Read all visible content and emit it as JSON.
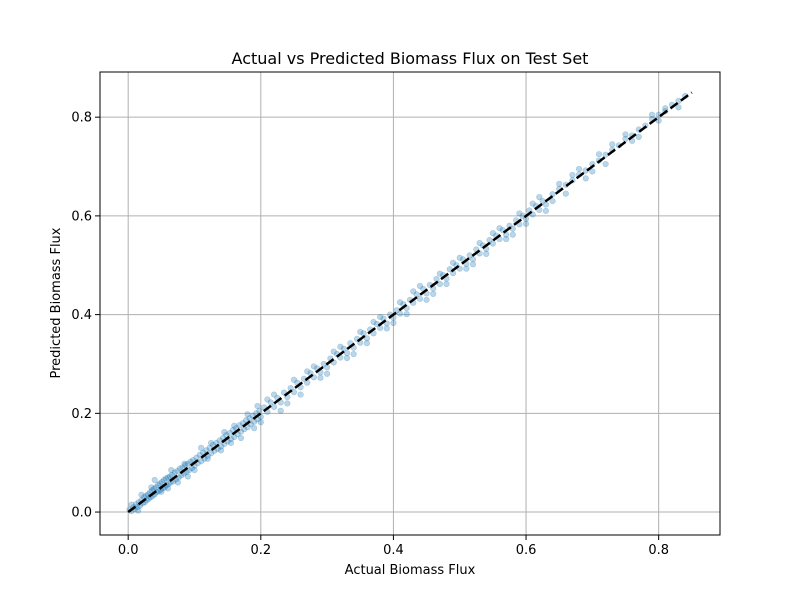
{
  "chart_data": {
    "type": "scatter",
    "title": "Actual vs Predicted Biomass Flux on Test Set",
    "xlabel": "Actual Biomass Flux",
    "ylabel": "Predicted Biomass Flux",
    "xlim": [
      -0.0425,
      0.8925
    ],
    "ylim": [
      -0.0465,
      0.8915
    ],
    "xticks": [
      0.0,
      0.2,
      0.4,
      0.6,
      0.8
    ],
    "yticks": [
      0.0,
      0.2,
      0.4,
      0.6,
      0.8
    ],
    "xtick_labels": [
      "0.0",
      "0.2",
      "0.4",
      "0.6",
      "0.8"
    ],
    "ytick_labels": [
      "0.0",
      "0.2",
      "0.4",
      "0.6",
      "0.8"
    ],
    "grid": true,
    "reference_line": {
      "style": "dashed",
      "color": "#000000",
      "from": [
        0.0,
        0.0
      ],
      "to": [
        0.85,
        0.85
      ]
    },
    "point_color": "#1f77b4",
    "point_opacity": 0.3,
    "points": [
      [
        0.002,
        0.005
      ],
      [
        0.005,
        0.002
      ],
      [
        0.008,
        0.01
      ],
      [
        0.01,
        0.006
      ],
      [
        0.012,
        0.016
      ],
      [
        0.014,
        0.01
      ],
      [
        0.016,
        0.02
      ],
      [
        0.018,
        0.013
      ],
      [
        0.02,
        0.024
      ],
      [
        0.022,
        0.018
      ],
      [
        0.024,
        0.03
      ],
      [
        0.025,
        0.02
      ],
      [
        0.027,
        0.033
      ],
      [
        0.028,
        0.024
      ],
      [
        0.03,
        0.036
      ],
      [
        0.031,
        0.027
      ],
      [
        0.033,
        0.04
      ],
      [
        0.034,
        0.03
      ],
      [
        0.036,
        0.044
      ],
      [
        0.037,
        0.033
      ],
      [
        0.039,
        0.047
      ],
      [
        0.04,
        0.036
      ],
      [
        0.042,
        0.05
      ],
      [
        0.043,
        0.04
      ],
      [
        0.045,
        0.055
      ],
      [
        0.046,
        0.042
      ],
      [
        0.048,
        0.058
      ],
      [
        0.049,
        0.045
      ],
      [
        0.051,
        0.061
      ],
      [
        0.052,
        0.048
      ],
      [
        0.054,
        0.065
      ],
      [
        0.055,
        0.05
      ],
      [
        0.057,
        0.068
      ],
      [
        0.058,
        0.054
      ],
      [
        0.06,
        0.07
      ],
      [
        0.061,
        0.057
      ],
      [
        0.063,
        0.072
      ],
      [
        0.064,
        0.06
      ],
      [
        0.066,
        0.075
      ],
      [
        0.068,
        0.062
      ],
      [
        0.07,
        0.08
      ],
      [
        0.072,
        0.066
      ],
      [
        0.074,
        0.083
      ],
      [
        0.076,
        0.07
      ],
      [
        0.078,
        0.088
      ],
      [
        0.08,
        0.074
      ],
      [
        0.082,
        0.09
      ],
      [
        0.084,
        0.078
      ],
      [
        0.086,
        0.095
      ],
      [
        0.088,
        0.081
      ],
      [
        0.09,
        0.098
      ],
      [
        0.092,
        0.085
      ],
      [
        0.094,
        0.102
      ],
      [
        0.096,
        0.089
      ],
      [
        0.098,
        0.105
      ],
      [
        0.1,
        0.094
      ],
      [
        0.103,
        0.11
      ],
      [
        0.105,
        0.099
      ],
      [
        0.108,
        0.116
      ],
      [
        0.11,
        0.103
      ],
      [
        0.113,
        0.12
      ],
      [
        0.115,
        0.108
      ],
      [
        0.118,
        0.125
      ],
      [
        0.12,
        0.114
      ],
      [
        0.123,
        0.13
      ],
      [
        0.125,
        0.119
      ],
      [
        0.128,
        0.136
      ],
      [
        0.13,
        0.124
      ],
      [
        0.133,
        0.14
      ],
      [
        0.135,
        0.128
      ],
      [
        0.138,
        0.145
      ],
      [
        0.14,
        0.133
      ],
      [
        0.143,
        0.15
      ],
      [
        0.145,
        0.138
      ],
      [
        0.148,
        0.156
      ],
      [
        0.15,
        0.143
      ],
      [
        0.153,
        0.16
      ],
      [
        0.155,
        0.148
      ],
      [
        0.158,
        0.166
      ],
      [
        0.16,
        0.152
      ],
      [
        0.163,
        0.17
      ],
      [
        0.165,
        0.158
      ],
      [
        0.168,
        0.176
      ],
      [
        0.17,
        0.163
      ],
      [
        0.173,
        0.18
      ],
      [
        0.175,
        0.168
      ],
      [
        0.178,
        0.186
      ],
      [
        0.18,
        0.172
      ],
      [
        0.183,
        0.19
      ],
      [
        0.185,
        0.178
      ],
      [
        0.188,
        0.195
      ],
      [
        0.19,
        0.183
      ],
      [
        0.193,
        0.2
      ],
      [
        0.195,
        0.188
      ],
      [
        0.198,
        0.205
      ],
      [
        0.2,
        0.193
      ],
      [
        0.205,
        0.212
      ],
      [
        0.21,
        0.203
      ],
      [
        0.215,
        0.222
      ],
      [
        0.22,
        0.213
      ],
      [
        0.225,
        0.231
      ],
      [
        0.23,
        0.222
      ],
      [
        0.235,
        0.242
      ],
      [
        0.24,
        0.233
      ],
      [
        0.245,
        0.251
      ],
      [
        0.25,
        0.243
      ],
      [
        0.255,
        0.262
      ],
      [
        0.26,
        0.253
      ],
      [
        0.265,
        0.27
      ],
      [
        0.27,
        0.262
      ],
      [
        0.275,
        0.281
      ],
      [
        0.28,
        0.273
      ],
      [
        0.285,
        0.291
      ],
      [
        0.29,
        0.283
      ],
      [
        0.295,
        0.3
      ],
      [
        0.3,
        0.293
      ],
      [
        0.305,
        0.311
      ],
      [
        0.31,
        0.303
      ],
      [
        0.315,
        0.32
      ],
      [
        0.32,
        0.313
      ],
      [
        0.325,
        0.331
      ],
      [
        0.33,
        0.322
      ],
      [
        0.335,
        0.342
      ],
      [
        0.34,
        0.333
      ],
      [
        0.345,
        0.351
      ],
      [
        0.35,
        0.343
      ],
      [
        0.355,
        0.362
      ],
      [
        0.36,
        0.352
      ],
      [
        0.365,
        0.37
      ],
      [
        0.37,
        0.362
      ],
      [
        0.375,
        0.381
      ],
      [
        0.38,
        0.373
      ],
      [
        0.385,
        0.392
      ],
      [
        0.39,
        0.382
      ],
      [
        0.395,
        0.4
      ],
      [
        0.4,
        0.394
      ],
      [
        0.405,
        0.409
      ],
      [
        0.41,
        0.402
      ],
      [
        0.415,
        0.421
      ],
      [
        0.42,
        0.413
      ],
      [
        0.425,
        0.43
      ],
      [
        0.43,
        0.424
      ],
      [
        0.435,
        0.441
      ],
      [
        0.44,
        0.432
      ],
      [
        0.445,
        0.452
      ],
      [
        0.45,
        0.443
      ],
      [
        0.455,
        0.46
      ],
      [
        0.46,
        0.453
      ],
      [
        0.465,
        0.472
      ],
      [
        0.47,
        0.462
      ],
      [
        0.475,
        0.48
      ],
      [
        0.48,
        0.473
      ],
      [
        0.485,
        0.492
      ],
      [
        0.49,
        0.484
      ],
      [
        0.495,
        0.5
      ],
      [
        0.5,
        0.493
      ],
      [
        0.505,
        0.512
      ],
      [
        0.51,
        0.503
      ],
      [
        0.515,
        0.52
      ],
      [
        0.52,
        0.512
      ],
      [
        0.525,
        0.532
      ],
      [
        0.53,
        0.524
      ],
      [
        0.535,
        0.54
      ],
      [
        0.54,
        0.533
      ],
      [
        0.545,
        0.551
      ],
      [
        0.55,
        0.544
      ],
      [
        0.555,
        0.56
      ],
      [
        0.56,
        0.553
      ],
      [
        0.565,
        0.571
      ],
      [
        0.57,
        0.562
      ],
      [
        0.575,
        0.58
      ],
      [
        0.58,
        0.574
      ],
      [
        0.585,
        0.591
      ],
      [
        0.59,
        0.583
      ],
      [
        0.595,
        0.6
      ],
      [
        0.6,
        0.594
      ],
      [
        0.605,
        0.611
      ],
      [
        0.61,
        0.603
      ],
      [
        0.615,
        0.62
      ],
      [
        0.62,
        0.612
      ],
      [
        0.625,
        0.63
      ],
      [
        0.63,
        0.623
      ],
      [
        0.64,
        0.644
      ],
      [
        0.65,
        0.655
      ],
      [
        0.66,
        0.663
      ],
      [
        0.67,
        0.672
      ],
      [
        0.68,
        0.684
      ],
      [
        0.69,
        0.692
      ],
      [
        0.7,
        0.705
      ],
      [
        0.71,
        0.712
      ],
      [
        0.72,
        0.724
      ],
      [
        0.73,
        0.734
      ],
      [
        0.74,
        0.743
      ],
      [
        0.75,
        0.756
      ],
      [
        0.76,
        0.763
      ],
      [
        0.77,
        0.775
      ],
      [
        0.78,
        0.783
      ],
      [
        0.79,
        0.796
      ],
      [
        0.8,
        0.805
      ],
      [
        0.81,
        0.812
      ],
      [
        0.82,
        0.825
      ],
      [
        0.83,
        0.833
      ],
      [
        0.84,
        0.843
      ],
      [
        0.04,
        0.065
      ],
      [
        0.05,
        0.041
      ],
      [
        0.06,
        0.048
      ],
      [
        0.075,
        0.06
      ],
      [
        0.09,
        0.072
      ],
      [
        0.11,
        0.13
      ],
      [
        0.125,
        0.14
      ],
      [
        0.14,
        0.125
      ],
      [
        0.16,
        0.175
      ],
      [
        0.17,
        0.15
      ],
      [
        0.18,
        0.198
      ],
      [
        0.19,
        0.17
      ],
      [
        0.21,
        0.228
      ],
      [
        0.23,
        0.205
      ],
      [
        0.25,
        0.268
      ],
      [
        0.26,
        0.238
      ],
      [
        0.28,
        0.295
      ],
      [
        0.3,
        0.28
      ],
      [
        0.31,
        0.325
      ],
      [
        0.33,
        0.312
      ],
      [
        0.35,
        0.365
      ],
      [
        0.36,
        0.342
      ],
      [
        0.38,
        0.395
      ],
      [
        0.39,
        0.372
      ],
      [
        0.41,
        0.425
      ],
      [
        0.42,
        0.401
      ],
      [
        0.44,
        0.458
      ],
      [
        0.45,
        0.43
      ],
      [
        0.47,
        0.483
      ],
      [
        0.48,
        0.462
      ],
      [
        0.5,
        0.515
      ],
      [
        0.51,
        0.493
      ],
      [
        0.53,
        0.545
      ],
      [
        0.54,
        0.523
      ],
      [
        0.56,
        0.575
      ],
      [
        0.57,
        0.553
      ],
      [
        0.59,
        0.605
      ],
      [
        0.6,
        0.584
      ],
      [
        0.62,
        0.638
      ],
      [
        0.63,
        0.61
      ],
      [
        0.65,
        0.665
      ],
      [
        0.66,
        0.645
      ],
      [
        0.68,
        0.695
      ],
      [
        0.69,
        0.676
      ],
      [
        0.71,
        0.725
      ],
      [
        0.72,
        0.705
      ],
      [
        0.75,
        0.765
      ],
      [
        0.77,
        0.76
      ],
      [
        0.79,
        0.805
      ],
      [
        0.8,
        0.793
      ],
      [
        0.005,
        0.015
      ],
      [
        0.015,
        0.003
      ],
      [
        0.035,
        0.05
      ],
      [
        0.02,
        0.035
      ],
      [
        0.065,
        0.085
      ],
      [
        0.085,
        0.098
      ],
      [
        0.1,
        0.085
      ],
      [
        0.12,
        0.108
      ],
      [
        0.145,
        0.162
      ],
      [
        0.155,
        0.14
      ],
      [
        0.195,
        0.215
      ],
      [
        0.2,
        0.182
      ],
      [
        0.22,
        0.238
      ],
      [
        0.24,
        0.22
      ],
      [
        0.27,
        0.285
      ],
      [
        0.29,
        0.272
      ],
      [
        0.32,
        0.335
      ],
      [
        0.34,
        0.32
      ],
      [
        0.37,
        0.385
      ],
      [
        0.4,
        0.383
      ],
      [
        0.43,
        0.447
      ],
      [
        0.46,
        0.442
      ],
      [
        0.49,
        0.505
      ],
      [
        0.52,
        0.502
      ],
      [
        0.55,
        0.565
      ],
      [
        0.58,
        0.562
      ],
      [
        0.61,
        0.625
      ],
      [
        0.64,
        0.63
      ],
      [
        0.67,
        0.683
      ],
      [
        0.7,
        0.69
      ],
      [
        0.73,
        0.745
      ],
      [
        0.76,
        0.752
      ],
      [
        0.81,
        0.818
      ],
      [
        0.83,
        0.82
      ]
    ]
  }
}
